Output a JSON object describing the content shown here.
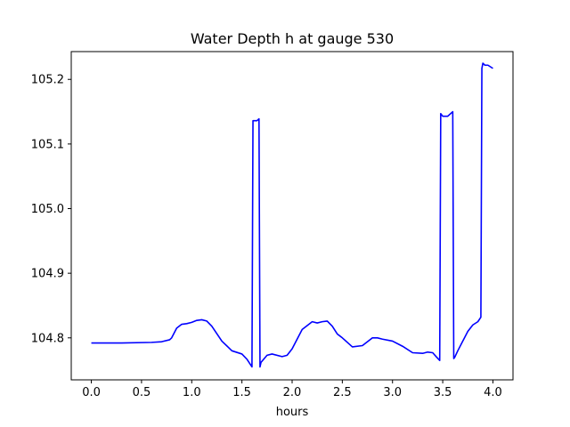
{
  "chart_data": {
    "type": "line",
    "title": "Water Depth h at gauge 530",
    "xlabel": "hours",
    "ylabel": "",
    "xlim": [
      -0.2,
      4.2
    ],
    "ylim": [
      104.735,
      105.243
    ],
    "grid": false,
    "legend": "none",
    "x_ticks": [
      0.0,
      0.5,
      1.0,
      1.5,
      2.0,
      2.5,
      3.0,
      3.5,
      4.0
    ],
    "x_tick_labels": [
      "0.0",
      "0.5",
      "1.0",
      "1.5",
      "2.0",
      "2.5",
      "3.0",
      "3.5",
      "4.0"
    ],
    "y_ticks": [
      104.8,
      104.9,
      105.0,
      105.1,
      105.2
    ],
    "y_tick_labels": [
      "104.8",
      "104.9",
      "105.0",
      "105.1",
      "105.2"
    ],
    "colors": {
      "line": "#0000ff",
      "axes": "#000000",
      "background": "#ffffff"
    },
    "series": [
      {
        "x": [
          0.0,
          0.3,
          0.6,
          0.7,
          0.78,
          0.8,
          0.85,
          0.9,
          0.95,
          1.0,
          1.05,
          1.1,
          1.15,
          1.2,
          1.3,
          1.4,
          1.5,
          1.55,
          1.6,
          1.61,
          1.62,
          1.65,
          1.67,
          1.68,
          1.69,
          1.75,
          1.8,
          1.9,
          1.95,
          2.0,
          2.1,
          2.2,
          2.25,
          2.3,
          2.35,
          2.4,
          2.45,
          2.5,
          2.6,
          2.7,
          2.8,
          2.85,
          2.9,
          3.0,
          3.1,
          3.2,
          3.3,
          3.35,
          3.4,
          3.44,
          3.47,
          3.48,
          3.5,
          3.55,
          3.6,
          3.61,
          3.62,
          3.65,
          3.7,
          3.75,
          3.8,
          3.85,
          3.88,
          3.89,
          3.9,
          3.92,
          3.95,
          4.0
        ],
        "y": [
          104.792,
          104.792,
          104.793,
          104.794,
          104.797,
          104.8,
          104.815,
          104.821,
          104.822,
          104.824,
          104.827,
          104.828,
          104.826,
          104.818,
          104.795,
          104.78,
          104.775,
          104.767,
          104.755,
          105.136,
          105.136,
          105.136,
          105.139,
          104.755,
          104.762,
          104.773,
          104.775,
          104.771,
          104.773,
          104.783,
          104.813,
          104.825,
          104.823,
          104.825,
          104.826,
          104.818,
          104.806,
          104.8,
          104.786,
          104.788,
          104.8,
          104.8,
          104.798,
          104.795,
          104.787,
          104.777,
          104.776,
          104.778,
          104.777,
          104.77,
          104.765,
          105.147,
          105.143,
          105.143,
          105.15,
          104.768,
          104.77,
          104.78,
          104.795,
          104.81,
          104.82,
          104.825,
          104.832,
          105.217,
          105.225,
          105.222,
          105.222,
          105.217
        ]
      }
    ]
  }
}
